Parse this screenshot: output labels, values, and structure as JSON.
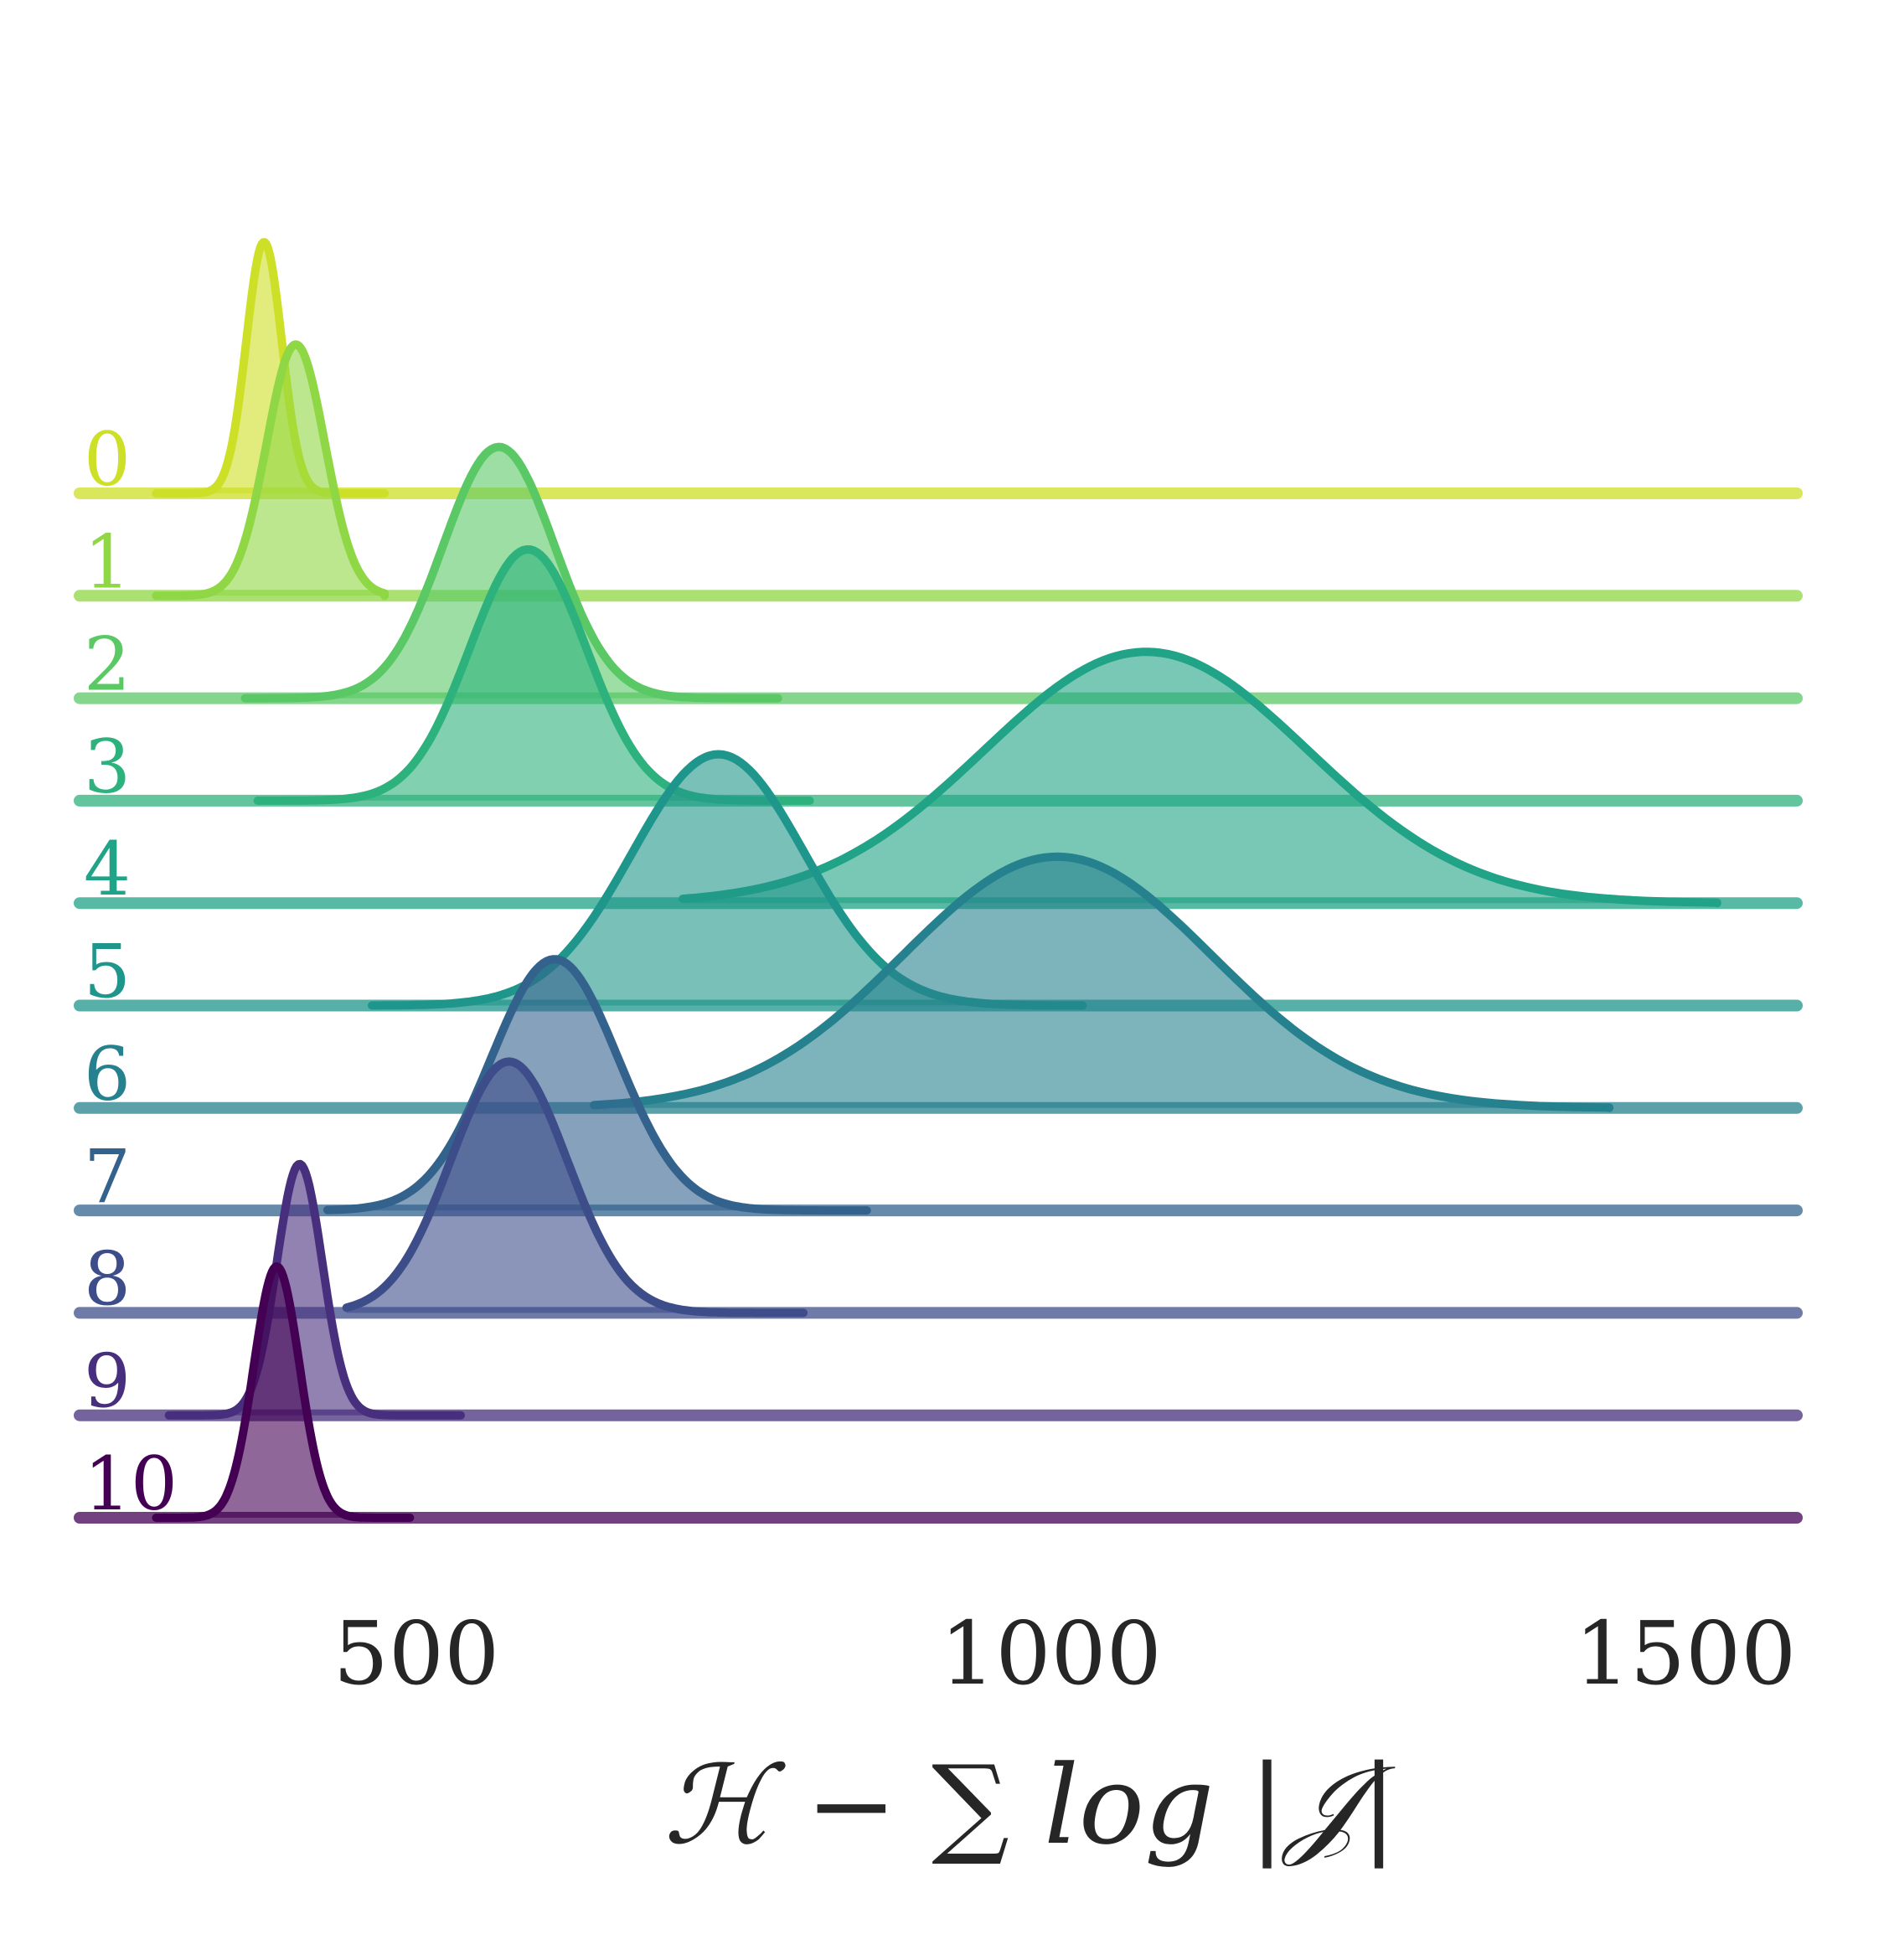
{
  "chart_data": {
    "type": "ridgeline",
    "title": "",
    "xlabel": "ℋ − ∑ log |𝒥|",
    "ylabel": "",
    "xticks": [
      500,
      1000,
      1500
    ],
    "xlim": [
      265,
      1590
    ],
    "grid": false,
    "palette": "viridis (reversed, row 0 = yellow-green, row 10 = dark purple)",
    "series": [
      {
        "name": "0",
        "color": "#cddf26",
        "mean": 380,
        "sd": 14,
        "range": [
          295,
          475
        ]
      },
      {
        "name": "1",
        "color": "#8fd744",
        "mean": 405,
        "sd": 23,
        "range": [
          295,
          475
        ]
      },
      {
        "name": "2",
        "color": "#5ac865",
        "mean": 565,
        "sd": 44,
        "range": [
          365,
          785
        ]
      },
      {
        "name": "3",
        "color": "#2db27d",
        "mean": 588,
        "sd": 46,
        "range": [
          375,
          810
        ]
      },
      {
        "name": "4",
        "color": "#20a386",
        "mean": 1075,
        "sd": 128,
        "range": [
          710,
          1525
        ]
      },
      {
        "name": "5",
        "color": "#1f968b",
        "mean": 738,
        "sd": 68,
        "range": [
          465,
          1025
        ]
      },
      {
        "name": "6",
        "color": "#26818e",
        "mean": 1005,
        "sd": 122,
        "range": [
          640,
          1440
        ]
      },
      {
        "name": "7",
        "color": "#33638d",
        "mean": 609,
        "sd": 50,
        "range": [
          430,
          855
        ]
      },
      {
        "name": "8",
        "color": "#3d4d8a",
        "mean": 573,
        "sd": 46,
        "range": [
          445,
          805
        ]
      },
      {
        "name": "9",
        "color": "#472f7d",
        "mean": 408,
        "sd": 18,
        "range": [
          305,
          535
        ]
      },
      {
        "name": "10",
        "color": "#440154",
        "mean": 390,
        "sd": 18,
        "range": [
          295,
          495
        ]
      }
    ]
  }
}
